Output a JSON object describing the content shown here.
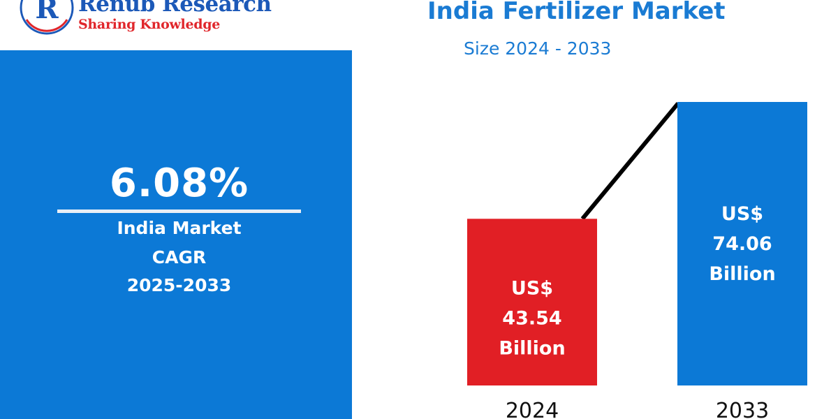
{
  "brand": {
    "name": "Renub Research",
    "tagline": "Sharing Knowledge",
    "logo_letters": "R"
  },
  "header": {
    "title": "India Fertilizer Market",
    "subtitle": "Size 2024 - 2033"
  },
  "cagr": {
    "value": "6.08%",
    "line1": "India Market",
    "line2": "CAGR",
    "line3": "2025-2033"
  },
  "colors": {
    "accent_blue": "#0c79d6",
    "title_blue": "#1a7bd3",
    "bar_2024": "#e11f25",
    "bar_2033": "#0c79d6",
    "trend_line": "#000000"
  },
  "chart_data": {
    "type": "bar",
    "categories": [
      "2024",
      "2033"
    ],
    "values": [
      43.54,
      74.06
    ],
    "unit": "US$ Billion",
    "bar_labels": [
      [
        "US$",
        "43.54",
        "Billion"
      ],
      [
        "US$",
        "74.06",
        "Billion"
      ]
    ],
    "bar_colors": [
      "#e11f25",
      "#0c79d6"
    ],
    "title": "India Fertilizer Market",
    "subtitle": "Size 2024 - 2033",
    "xlabel": "",
    "ylabel": "",
    "grid": false,
    "trend_line": true
  }
}
